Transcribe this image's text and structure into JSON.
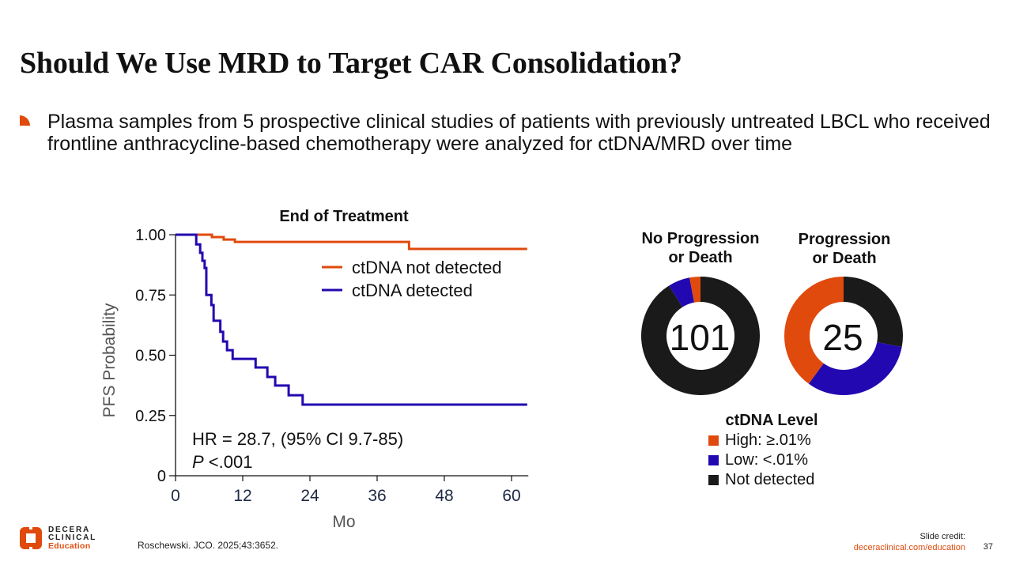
{
  "slide": {
    "title": "Should We Use MRD to Target CAR Consolidation?",
    "bullet": "Plasma samples from 5 prospective clinical studies of patients with previously untreated LBCL who received frontline anthracycline-based chemotherapy were analyzed for ctDNA/MRD over time",
    "citation": "Roschewski. JCO. 2025;43:3652.",
    "credit_label": "Slide credit:",
    "credit_url": "deceraclinical.com/education",
    "page_number": "37",
    "logo": {
      "line1": "DECERA",
      "line2": "CLINICAL",
      "line3": "Education"
    }
  },
  "colors": {
    "orange": "#e04a0d",
    "blue": "#2208b0",
    "black": "#1a1a1a",
    "axis_label_gray": "#555555",
    "tick_label_navy": "#1e2a44"
  },
  "chart_data": [
    {
      "type": "line",
      "subtype": "kaplan-meier step",
      "title": "End of Treatment",
      "xlabel": "Mo",
      "ylabel": "PFS Probability",
      "xlim": [
        0,
        63
      ],
      "ylim": [
        0,
        1.0
      ],
      "xticks": [
        0,
        12,
        24,
        36,
        48,
        60
      ],
      "xtick_labels": [
        "0",
        "12",
        "24",
        "36",
        "48",
        "60"
      ],
      "yticks": [
        0,
        0.25,
        0.5,
        0.75,
        1.0
      ],
      "ytick_labels": [
        "0",
        "0.25",
        "0.50",
        "0.75",
        "1.00"
      ],
      "legend_position": "top-right",
      "series": [
        {
          "name": "ctDNA not detected",
          "color": "#e04a0d",
          "x": [
            0,
            6.5,
            8.6,
            10.6,
            41.7,
            62.8
          ],
          "y": [
            1.0,
            0.99,
            0.98,
            0.97,
            0.941,
            0.941
          ]
        },
        {
          "name": "ctDNA detected",
          "color": "#2208b0",
          "x": [
            0,
            3.7,
            4.4,
            4.8,
            5.2,
            5.5,
            6.4,
            6.8,
            8.0,
            8.5,
            9.2,
            10.2,
            14.3,
            16.4,
            17.8,
            20.2,
            22.7,
            62.8
          ],
          "y": [
            1.0,
            0.96,
            0.925,
            0.892,
            0.862,
            0.75,
            0.708,
            0.643,
            0.597,
            0.557,
            0.521,
            0.485,
            0.449,
            0.41,
            0.374,
            0.334,
            0.295,
            0.295
          ]
        }
      ],
      "annotations": {
        "hr": "HR = 28.7, (95% CI 9.7-85)",
        "p_italic": "P",
        "p_rest": " <.001"
      }
    },
    {
      "type": "pie",
      "subtype": "donut",
      "title": "No Progression or Death",
      "title_line1": "No Progression",
      "title_line2": "or Death",
      "center_label": "101",
      "slices": [
        {
          "label": "Not detected",
          "value": 92,
          "color": "#1a1a1a"
        },
        {
          "label": "Low: <.01%",
          "value": 6,
          "color": "#2208b0"
        },
        {
          "label": "High: ≥.01%",
          "value": 3,
          "color": "#e04a0d"
        }
      ]
    },
    {
      "type": "pie",
      "subtype": "donut",
      "title": "Progression or Death",
      "title_line1": "Progression",
      "title_line2": "or Death",
      "center_label": "25",
      "slices": [
        {
          "label": "Not detected",
          "value": 7,
          "color": "#1a1a1a"
        },
        {
          "label": "Low: <.01%",
          "value": 8,
          "color": "#2208b0"
        },
        {
          "label": "High: ≥.01%",
          "value": 10,
          "color": "#e04a0d"
        }
      ]
    }
  ],
  "donut_legend": {
    "title": "ctDNA Level",
    "items": [
      {
        "label": "High: ≥.01%",
        "color": "#e04a0d"
      },
      {
        "label": "Low: <.01%",
        "color": "#2208b0"
      },
      {
        "label": "Not detected",
        "color": "#1a1a1a"
      }
    ]
  }
}
